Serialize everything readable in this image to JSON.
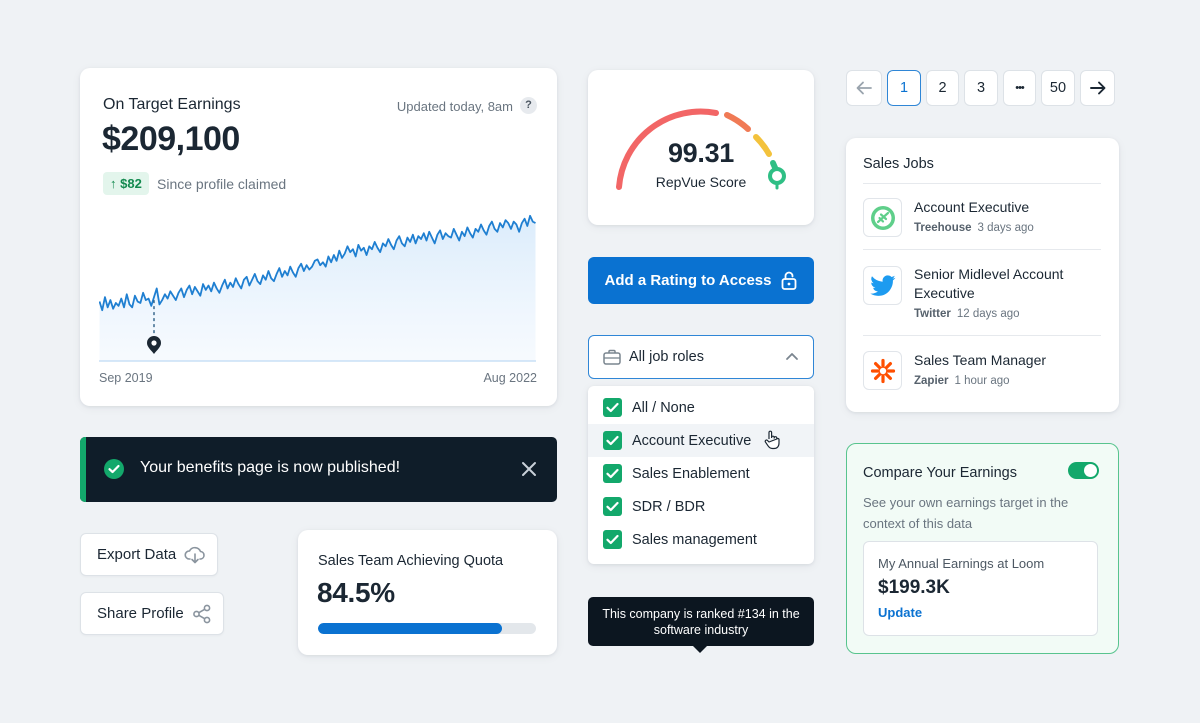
{
  "ote": {
    "title": "On Target Earnings",
    "updated": "Updated today, 8am",
    "help": "?",
    "amount": "$209,100",
    "delta": "$82",
    "since": "Since profile claimed",
    "x_start": "Sep 2019",
    "x_end": "Aug 2022",
    "chart_color": "#1f7fd1"
  },
  "chart_data": {
    "type": "area",
    "title": "On Target Earnings",
    "x_range": [
      "Sep 2019",
      "Aug 2022"
    ],
    "marker_index": 20,
    "values": [
      112,
      106,
      115,
      108,
      113,
      107,
      111,
      109,
      114,
      108,
      117,
      110,
      108,
      116,
      112,
      111,
      118,
      113,
      114,
      109,
      115,
      121,
      110,
      113,
      117,
      114,
      119,
      116,
      113,
      118,
      121,
      115,
      120,
      123,
      117,
      122,
      119,
      116,
      124,
      120,
      123,
      119,
      125,
      121,
      118,
      123,
      127,
      121,
      125,
      122,
      128,
      124,
      121,
      127,
      129,
      123,
      127,
      131,
      126,
      124,
      130,
      127,
      133,
      128,
      126,
      131,
      135,
      129,
      133,
      130,
      136,
      132,
      129,
      135,
      138,
      133,
      137,
      134,
      136,
      140,
      141,
      137,
      139,
      136,
      143,
      139,
      144,
      140,
      147,
      142,
      145,
      150,
      146,
      148,
      143,
      151,
      147,
      149,
      144,
      150,
      148,
      153,
      149,
      146,
      152,
      150,
      155,
      151,
      148,
      154,
      157,
      152,
      150,
      156,
      153,
      158,
      152,
      157,
      155,
      159,
      154,
      160,
      156,
      152,
      158,
      161,
      155,
      159,
      157,
      156,
      162,
      158,
      154,
      160,
      157,
      163,
      159,
      156,
      162,
      160,
      165,
      161,
      158,
      164,
      167,
      162,
      160,
      166,
      163,
      168,
      166,
      162,
      167,
      165,
      160,
      166,
      169,
      164,
      171,
      167,
      166
    ]
  },
  "gauge": {
    "score": "99.31",
    "label": "RepVue Score"
  },
  "add_rating": {
    "label": "Add a Rating to Access"
  },
  "roles": {
    "selected": "All job roles",
    "options": [
      "All / None",
      "Account Executive",
      "Sales Enablement",
      "SDR / BDR",
      "Sales management"
    ]
  },
  "tooltip": {
    "text": "This company is ranked #134 in the software industry"
  },
  "toast": {
    "message": "Your benefits page is now published!"
  },
  "buttons": {
    "export": "Export Data",
    "share": "Share Profile"
  },
  "quota": {
    "title": "Sales Team Achieving Quota",
    "value": "84.5%",
    "fraction": 0.845
  },
  "pagination": {
    "pages": [
      "1",
      "2",
      "3",
      "•••",
      "50"
    ]
  },
  "jobs": {
    "title": "Sales Jobs",
    "items": [
      {
        "title": "Account Executive",
        "company": "Treehouse",
        "age": "3 days ago"
      },
      {
        "title": "Senior Midlevel Account Executive",
        "company": "Twitter",
        "age": "12 days ago"
      },
      {
        "title": "Sales Team Manager",
        "company": "Zapier",
        "age": "1 hour ago"
      }
    ]
  },
  "compare": {
    "title": "Compare Your Earnings",
    "description": "See your own earnings target in the context of this data",
    "inner_label": "My Annual Earnings at Loom",
    "inner_value": "$199.3K",
    "link": "Update"
  },
  "colors": {
    "accent": "#0a72d1",
    "success": "#13a86b",
    "dark": "#0f1d29"
  }
}
